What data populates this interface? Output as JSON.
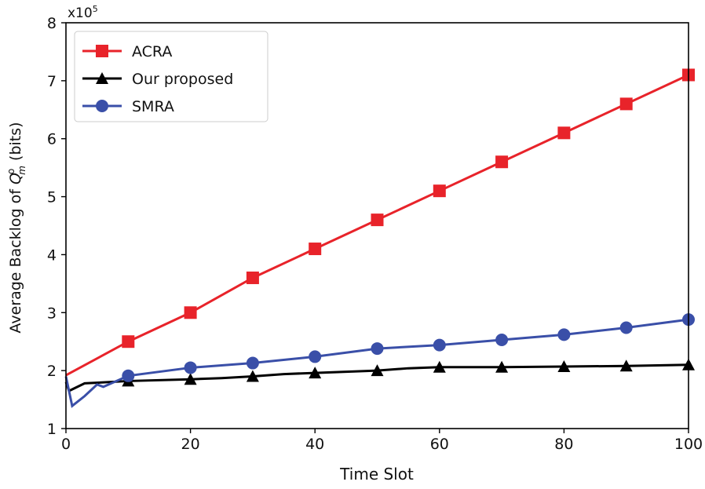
{
  "chart_data": {
    "type": "line",
    "title": "",
    "xlabel": "Time Slot",
    "ylabel_prefix": "Average Backlog of ",
    "ylabel_symbol": "Q",
    "ylabel_sup": "o",
    "ylabel_sub": "m",
    "ylabel_suffix": " (bits)",
    "y_multiplier": "x10",
    "y_multiplier_exp": "5",
    "xlim": [
      0,
      100
    ],
    "ylim": [
      1,
      8
    ],
    "xticks": [
      0,
      20,
      40,
      60,
      80,
      100
    ],
    "yticks": [
      1,
      2,
      3,
      4,
      5,
      6,
      7,
      8
    ],
    "grid": false,
    "legend_position": "top-left",
    "series": [
      {
        "name": "ACRA",
        "color": "#e8232a",
        "marker": "square",
        "x": [
          0,
          10,
          20,
          30,
          40,
          50,
          60,
          70,
          80,
          90,
          100
        ],
        "y": [
          1.92,
          2.5,
          3.0,
          3.6,
          4.1,
          4.6,
          5.1,
          5.6,
          6.1,
          6.6,
          7.1
        ],
        "marker_x": [
          10,
          20,
          30,
          40,
          50,
          60,
          70,
          80,
          90,
          100
        ]
      },
      {
        "name": "Our proposed",
        "color": "#000000",
        "marker": "triangle",
        "x": [
          0,
          0.5,
          3,
          10,
          20,
          25,
          30,
          35,
          40,
          50,
          55,
          60,
          70,
          80,
          90,
          100
        ],
        "y": [
          1.8,
          1.65,
          1.78,
          1.82,
          1.85,
          1.87,
          1.9,
          1.94,
          1.96,
          2.0,
          2.04,
          2.06,
          2.06,
          2.07,
          2.08,
          2.1
        ],
        "marker_x": [
          10,
          20,
          30,
          40,
          50,
          60,
          70,
          80,
          90,
          100
        ]
      },
      {
        "name": "SMRA",
        "color": "#3a4fa8",
        "marker": "circle",
        "x": [
          0,
          1,
          3,
          5,
          6,
          10,
          20,
          30,
          40,
          50,
          60,
          70,
          80,
          90,
          100
        ],
        "y": [
          1.9,
          1.39,
          1.56,
          1.76,
          1.72,
          1.91,
          2.05,
          2.13,
          2.24,
          2.38,
          2.44,
          2.53,
          2.62,
          2.74,
          2.88
        ],
        "marker_x": [
          10,
          20,
          30,
          40,
          50,
          60,
          70,
          80,
          90,
          100
        ]
      }
    ]
  }
}
